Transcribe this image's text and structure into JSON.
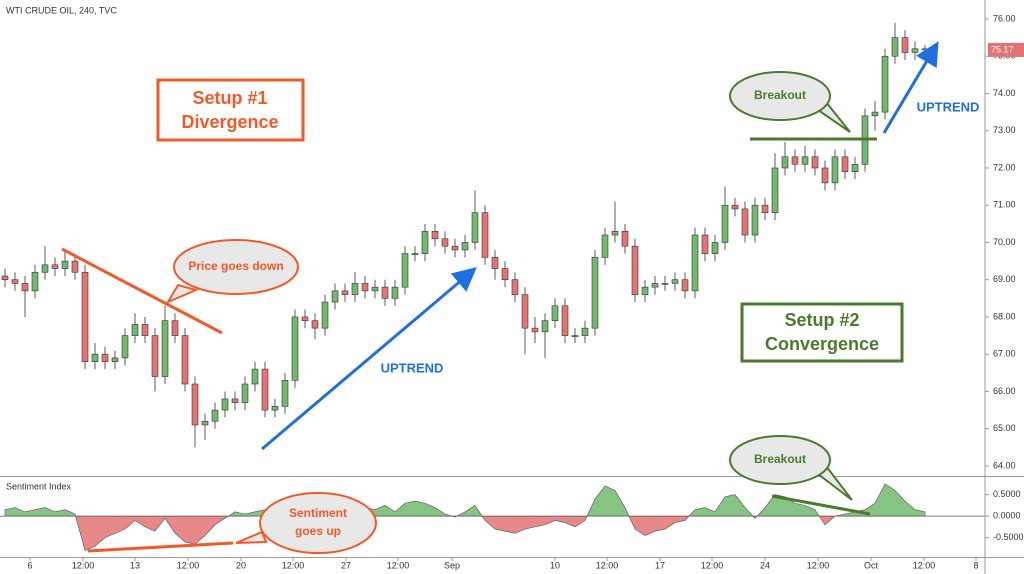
{
  "chart_data": [
    {
      "type": "candlestick",
      "title": "WTI CRUDE OIL, 240, TVC",
      "open": [
        69.1,
        69.0,
        68.9,
        68.7,
        69.2,
        69.4,
        69.3,
        69.5,
        69.2,
        66.8,
        67.0,
        66.8,
        66.9,
        67.5,
        67.8,
        67.5,
        66.4,
        67.9,
        67.5,
        66.2,
        65.1,
        65.2,
        65.5,
        65.8,
        65.7,
        66.2,
        66.6,
        65.5,
        65.6,
        66.3,
        68.0,
        67.9,
        67.7,
        68.4,
        68.7,
        68.6,
        68.9,
        68.7,
        68.8,
        68.5,
        68.8,
        69.7,
        69.7,
        70.3,
        70.1,
        69.9,
        69.8,
        70.0,
        70.8,
        69.6,
        69.3,
        69.0,
        68.6,
        67.7,
        67.6,
        67.9,
        68.3,
        67.5,
        67.5,
        67.7,
        69.6,
        70.2,
        70.3,
        69.9,
        68.6,
        68.8,
        68.9,
        68.9,
        69.0,
        68.7,
        70.2,
        69.7,
        70.0,
        71.0,
        70.9,
        70.2,
        71.0,
        70.8,
        72.0,
        72.3,
        72.1,
        72.3,
        72.0,
        71.6,
        72.3,
        71.9,
        72.1,
        73.4,
        73.5,
        75.0,
        75.5,
        75.1,
        75.2
      ],
      "high": [
        69.3,
        69.2,
        69.1,
        69.4,
        69.9,
        69.6,
        69.8,
        69.7,
        69.4,
        67.3,
        67.2,
        67.1,
        67.7,
        68.1,
        68.0,
        67.7,
        68.3,
        68.1,
        67.7,
        66.4,
        65.4,
        65.7,
        66.0,
        66.0,
        66.4,
        66.8,
        66.8,
        65.8,
        66.5,
        68.2,
        68.2,
        68.1,
        68.6,
        68.9,
        68.9,
        69.2,
        69.1,
        69.0,
        69.0,
        69.0,
        69.9,
        69.9,
        70.5,
        70.5,
        70.3,
        70.1,
        70.2,
        71.4,
        71.0,
        69.8,
        69.5,
        69.2,
        68.8,
        68.0,
        68.1,
        68.5,
        68.5,
        67.7,
        67.9,
        69.8,
        70.4,
        71.1,
        70.5,
        70.1,
        69.0,
        69.1,
        69.1,
        69.2,
        69.2,
        70.4,
        70.4,
        70.2,
        71.5,
        71.2,
        71.1,
        71.2,
        71.2,
        72.4,
        72.7,
        72.5,
        72.6,
        72.5,
        72.2,
        72.5,
        72.5,
        72.3,
        73.6,
        73.8,
        75.2,
        75.9,
        75.7,
        75.4,
        75.3
      ],
      "low": [
        68.8,
        68.7,
        68.0,
        68.5,
        69.0,
        69.1,
        69.1,
        69.0,
        66.6,
        66.6,
        66.6,
        66.6,
        66.7,
        67.3,
        67.3,
        66.0,
        66.2,
        67.3,
        66.0,
        64.5,
        64.7,
        65.0,
        65.3,
        65.5,
        65.5,
        66.0,
        65.3,
        65.3,
        65.4,
        66.1,
        67.7,
        67.4,
        67.5,
        68.2,
        68.4,
        68.4,
        68.5,
        68.5,
        68.3,
        68.3,
        68.6,
        69.5,
        69.5,
        69.9,
        69.7,
        69.6,
        69.6,
        69.8,
        69.4,
        69.0,
        68.8,
        68.4,
        67.0,
        67.3,
        66.9,
        67.7,
        67.3,
        67.3,
        67.3,
        67.5,
        69.4,
        70.0,
        69.7,
        68.4,
        68.4,
        68.6,
        68.7,
        68.7,
        68.5,
        68.5,
        69.5,
        69.5,
        69.8,
        70.7,
        70.0,
        70.0,
        70.6,
        70.6,
        71.8,
        71.9,
        71.9,
        71.8,
        71.4,
        71.4,
        71.7,
        71.7,
        71.9,
        73.0,
        73.3,
        74.8,
        74.9,
        74.9,
        75.0
      ],
      "close": [
        69.0,
        68.9,
        68.7,
        69.2,
        69.4,
        69.3,
        69.5,
        69.2,
        66.8,
        67.0,
        66.8,
        66.9,
        67.5,
        67.8,
        67.5,
        66.4,
        67.9,
        67.5,
        66.2,
        65.1,
        65.2,
        65.5,
        65.8,
        65.7,
        66.2,
        66.6,
        65.5,
        65.6,
        66.3,
        68.0,
        67.9,
        67.7,
        68.4,
        68.7,
        68.6,
        68.9,
        68.7,
        68.8,
        68.5,
        68.8,
        69.7,
        69.7,
        70.3,
        70.1,
        69.9,
        69.8,
        70.0,
        70.8,
        69.6,
        69.3,
        69.0,
        68.6,
        67.7,
        67.6,
        67.9,
        68.3,
        67.5,
        67.5,
        67.7,
        69.6,
        70.2,
        70.3,
        69.9,
        68.6,
        68.8,
        68.9,
        68.9,
        69.0,
        68.7,
        70.2,
        69.7,
        70.0,
        71.0,
        70.9,
        70.2,
        71.0,
        70.8,
        72.0,
        72.3,
        72.1,
        72.3,
        72.0,
        71.6,
        72.3,
        71.9,
        72.1,
        73.4,
        73.5,
        75.0,
        75.5,
        75.1,
        75.2,
        75.17
      ],
      "up_color": "#71b96f",
      "down_color": "#e57373",
      "ylim": [
        63.73,
        76.51
      ],
      "yticks": [
        {
          "value": 64,
          "label": "64.00"
        },
        {
          "value": 65,
          "label": "65.00"
        },
        {
          "value": 66,
          "label": "66.00"
        },
        {
          "value": 67,
          "label": "67.00"
        },
        {
          "value": 68,
          "label": "68.00"
        },
        {
          "value": 69,
          "label": "69.00"
        },
        {
          "value": 70,
          "label": "70.00"
        },
        {
          "value": 71,
          "label": "71.00"
        },
        {
          "value": 72,
          "label": "72.00"
        },
        {
          "value": 73,
          "label": "73.00"
        },
        {
          "value": 74,
          "label": "74.00"
        },
        {
          "value": 75,
          "label": "75.00"
        },
        {
          "value": 76,
          "label": "76.00"
        }
      ],
      "xlim": [
        -0.5,
        98
      ],
      "xticks": [
        {
          "value": 2.5,
          "label": "6"
        },
        {
          "value": 7.8,
          "label": "12:00"
        },
        {
          "value": 13,
          "label": "13"
        },
        {
          "value": 18.3,
          "label": "12:00"
        },
        {
          "value": 23.6,
          "label": "20"
        },
        {
          "value": 28.8,
          "label": "12:00"
        },
        {
          "value": 34.1,
          "label": "27"
        },
        {
          "value": 39.3,
          "label": "12:00"
        },
        {
          "value": 44.7,
          "label": "Sep"
        },
        {
          "value": 55,
          "label": "10"
        },
        {
          "value": 60.2,
          "label": "12:00"
        },
        {
          "value": 65.5,
          "label": "17"
        },
        {
          "value": 70.7,
          "label": "12:00"
        },
        {
          "value": 76,
          "label": "24"
        },
        {
          "value": 81.3,
          "label": "12:00"
        },
        {
          "value": 86.6,
          "label": "Oct"
        },
        {
          "value": 91.9,
          "label": "12:00"
        },
        {
          "value": 97.1,
          "label": "8"
        }
      ],
      "setup_1": [
        "Setup #1",
        "Divergence"
      ],
      "setup_2": [
        "Setup #2",
        "Convergence"
      ],
      "price_callout": "Price goes down",
      "breakout_callout": "Breakout",
      "trend_labels": [
        "UPTREND",
        "UPTREND"
      ]
    },
    {
      "type": "area",
      "title": "Sentiment Index",
      "values": [
        0.15,
        0.2,
        0.1,
        0.15,
        0.2,
        0.1,
        0.15,
        0.05,
        -0.8,
        -0.7,
        -0.5,
        -0.4,
        -0.3,
        -0.1,
        -0.25,
        -0.35,
        -0.05,
        -0.4,
        -0.6,
        -0.65,
        -0.45,
        -0.2,
        -0.05,
        0.1,
        0.05,
        0.1,
        0.15,
        0.1,
        0.05,
        0.2,
        0.25,
        0.2,
        0.1,
        0.15,
        -0.05,
        0.1,
        0.2,
        0.15,
        0.25,
        0.1,
        0.3,
        0.35,
        0.3,
        0.2,
        0.05,
        -0.02,
        0.1,
        0.25,
        -0.1,
        -0.3,
        -0.35,
        -0.4,
        -0.3,
        -0.25,
        -0.2,
        -0.1,
        -0.15,
        -0.25,
        -0.1,
        0.4,
        0.7,
        0.6,
        0.2,
        -0.3,
        -0.45,
        -0.35,
        -0.3,
        -0.15,
        -0.1,
        0.15,
        0.2,
        0.1,
        0.45,
        0.5,
        0.2,
        -0.05,
        0.2,
        0.5,
        0.45,
        0.3,
        0.25,
        0.15,
        -0.2,
        0.0,
        0.05,
        0.1,
        0.15,
        0.3,
        0.75,
        0.6,
        0.35,
        0.15,
        0.1
      ],
      "positive_color": "#71b96f",
      "negative_color": "#e57373",
      "ylim": [
        -0.95,
        0.91
      ],
      "yticks": [
        {
          "value": 0.5,
          "label": "0.5000"
        },
        {
          "value": 0,
          "label": "0.0000"
        },
        {
          "value": -0.5,
          "label": "-0.5000"
        }
      ],
      "sentiment_callout": [
        "Sentiment",
        "goes up"
      ],
      "breakout_callout": "Breakout"
    }
  ]
}
